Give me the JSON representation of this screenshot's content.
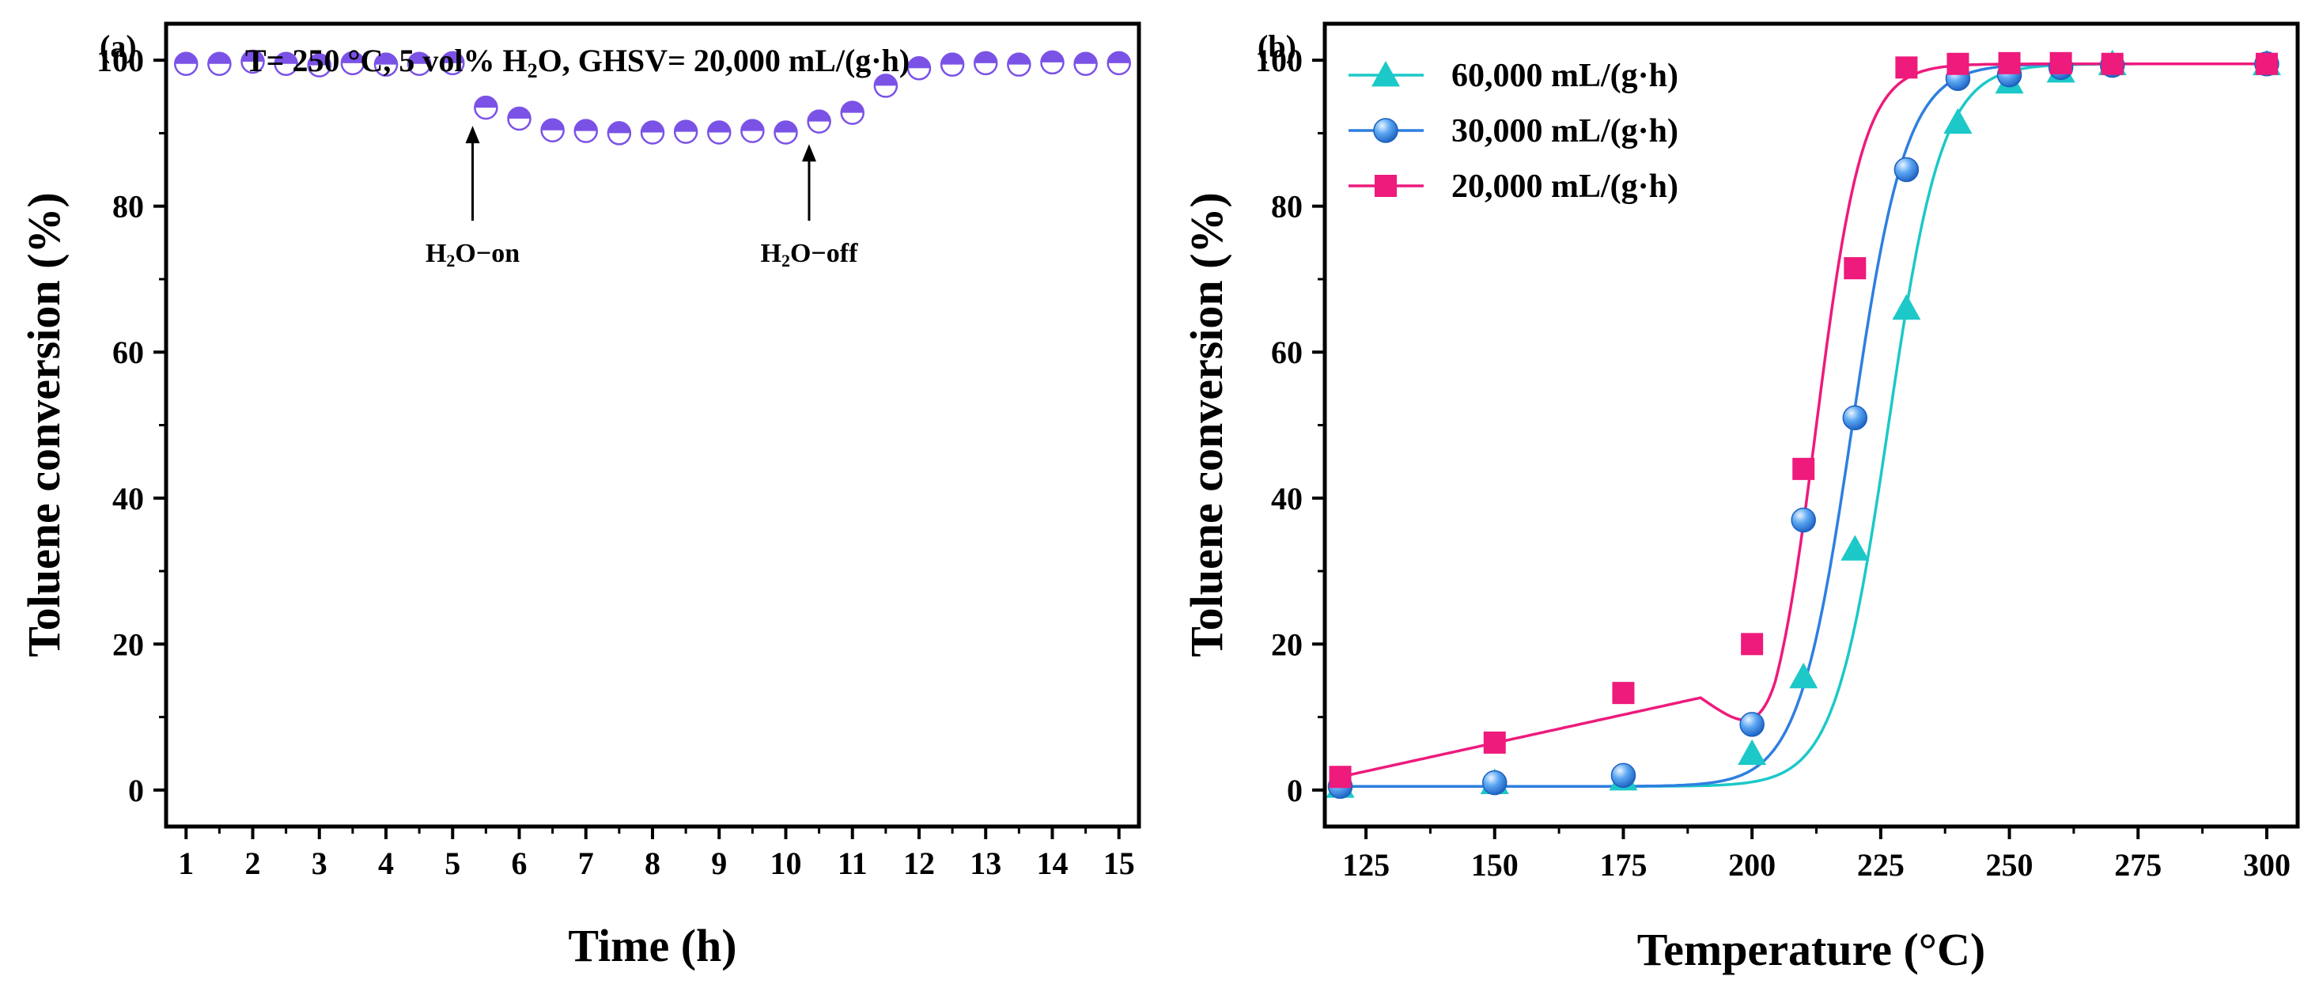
{
  "chart_data": [
    {
      "panel": "(a)",
      "type": "scatter",
      "title": "",
      "annotation": {
        "pre": "T= 250 °C,  5 vol% H",
        "sub": "2",
        "mid": "O,  GHSV= 20,000 mL/(g·h)"
      },
      "xlabel": "Time (h)",
      "ylabel": "Toluene conversion (%)",
      "xlim": [
        0.7,
        15.3
      ],
      "ylim": [
        -5,
        105
      ],
      "xticks": [
        1,
        2,
        3,
        4,
        5,
        6,
        7,
        8,
        9,
        10,
        11,
        12,
        13,
        14,
        15
      ],
      "yticks": [
        0,
        20,
        40,
        60,
        80,
        100
      ],
      "series": [
        {
          "name": "Toluene conversion",
          "color": "#7b52e6",
          "marker": "half-filled-circle",
          "x": [
            1,
            1.5,
            2,
            2.5,
            3,
            3.5,
            4,
            4.5,
            5,
            5.5,
            6,
            6.5,
            7,
            7.5,
            8,
            8.5,
            9,
            9.5,
            10,
            10.5,
            11,
            11.5,
            12,
            12.5,
            13,
            13.5,
            14,
            14.5,
            15
          ],
          "y": [
            99.5,
            99.5,
            99.8,
            99.5,
            99.3,
            99.6,
            99.4,
            99.5,
            99.6,
            93.5,
            92.0,
            90.4,
            90.3,
            90.0,
            90.1,
            90.2,
            90.1,
            90.3,
            90.1,
            91.6,
            92.8,
            96.5,
            98.9,
            99.4,
            99.6,
            99.4,
            99.7,
            99.5,
            99.6
          ]
        }
      ],
      "arrows": [
        {
          "label_pre": "H",
          "label_sub": "2",
          "label_post": "O−on",
          "x": 5.3,
          "y_tip": 91,
          "y_tail": 78
        },
        {
          "label_pre": "H",
          "label_sub": "2",
          "label_post": "O−off",
          "x": 10.35,
          "y_tip": 88.5,
          "y_tail": 78
        }
      ]
    },
    {
      "panel": "(b)",
      "type": "line",
      "title": "",
      "xlabel": "Temperature (°C)",
      "ylabel": "Toluene conversion (%)",
      "xlim": [
        117,
        306
      ],
      "ylim": [
        -5,
        105
      ],
      "xticks": [
        125,
        150,
        175,
        200,
        225,
        250,
        275,
        300
      ],
      "yticks": [
        0,
        20,
        40,
        60,
        80,
        100
      ],
      "legend_position": "top-left",
      "series": [
        {
          "name": "60,000 mL/(g·h)",
          "color": "#1cc8c8",
          "marker": "triangle",
          "x": [
            120,
            150,
            175,
            200,
            210,
            220,
            230,
            240,
            250,
            260,
            270,
            300
          ],
          "y": [
            0.5,
            1.0,
            1.5,
            5.0,
            15.5,
            33.0,
            66.0,
            91.5,
            97.0,
            98.5,
            99.5,
            99.5
          ],
          "fit": {
            "A1": 0.5,
            "A2": 99.5,
            "x0": 226.5,
            "dx": 5.2
          }
        },
        {
          "name": "30,000 mL/(g·h)",
          "color": "#2e7fe0",
          "marker": "sphere",
          "x": [
            120,
            150,
            175,
            200,
            210,
            220,
            230,
            240,
            250,
            260,
            270,
            300
          ],
          "y": [
            0.5,
            1.0,
            2.0,
            9.0,
            37.0,
            51.0,
            85.0,
            97.5,
            98.0,
            99.0,
            99.3,
            99.5
          ],
          "fit": {
            "A1": 0.5,
            "A2": 99.5,
            "x0": 219.5,
            "dx": 5.2
          }
        },
        {
          "name": "20,000 mL/(g·h)",
          "color": "#ee1a7c",
          "marker": "square",
          "x": [
            120,
            150,
            175,
            200,
            210,
            220,
            230,
            240,
            250,
            260,
            270,
            300
          ],
          "y": [
            1.8,
            6.5,
            13.3,
            20.0,
            44.0,
            71.5,
            99.0,
            99.5,
            99.6,
            99.6,
            99.5,
            99.5
          ],
          "fit": {
            "A1": 0.5,
            "A2": 99.5,
            "x0": 212.5,
            "dx": 4.5
          }
        }
      ]
    }
  ]
}
